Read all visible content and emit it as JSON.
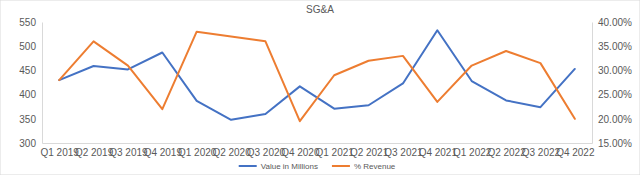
{
  "chart_data": {
    "type": "line",
    "title": "SG&A",
    "categories": [
      "Q1 2019",
      "Q2 2019",
      "Q3 2019",
      "Q4 2019",
      "Q1 2020",
      "Q2 2020",
      "Q3 2020",
      "Q4 2020",
      "Q1 2021",
      "Q2 2021",
      "Q3 2021",
      "Q4 2021",
      "Q1 2022",
      "Q2 2022",
      "Q3 2022",
      "Q4 2022"
    ],
    "series": [
      {
        "name": "Value in Millions",
        "color": "#4472c4",
        "values": [
          430,
          459,
          452,
          487,
          387,
          348,
          360,
          417,
          371,
          378,
          423,
          533,
          428,
          388,
          374,
          453
        ]
      },
      {
        "name": "% Revenue",
        "color": "#ed7d31",
        "axis": "y2",
        "values": [
          28,
          36,
          31,
          22,
          38,
          37,
          36,
          19.5,
          29,
          32,
          33,
          23.5,
          31,
          34,
          31.5,
          20
        ]
      }
    ],
    "ylim": [
      300,
      550
    ],
    "yticks": [
      300,
      350,
      400,
      450,
      500,
      550
    ],
    "y2lim": [
      15,
      40
    ],
    "y2ticks": [
      {
        "value": 15,
        "label": "15.00%"
      },
      {
        "value": 20,
        "label": "20.00%"
      },
      {
        "value": 25,
        "label": "25.00%"
      },
      {
        "value": 30,
        "label": "30.00%"
      },
      {
        "value": 35,
        "label": "35.00%"
      },
      {
        "value": 40,
        "label": "40.00%"
      }
    ],
    "grid": false,
    "legend": "bottom"
  }
}
